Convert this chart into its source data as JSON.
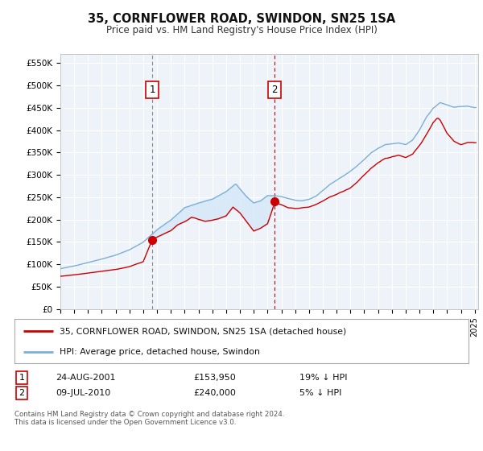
{
  "title": "35, CORNFLOWER ROAD, SWINDON, SN25 1SA",
  "subtitle": "Price paid vs. HM Land Registry's House Price Index (HPI)",
  "ylim": [
    0,
    570000
  ],
  "xlim_start": 1995.0,
  "xlim_end": 2025.25,
  "hpi_color": "#7bafd4",
  "price_color": "#cc0000",
  "shade_color": "#d6e8f7",
  "background_color": "#eef3fa",
  "grid_color": "#ffffff",
  "marker1_x": 2001.647,
  "marker1_y": 153950,
  "marker2_x": 2010.525,
  "marker2_y": 240000,
  "marker1_label": "1",
  "marker2_label": "2",
  "legend_line1": "35, CORNFLOWER ROAD, SWINDON, SN25 1SA (detached house)",
  "legend_line2": "HPI: Average price, detached house, Swindon",
  "table_row1_num": "1",
  "table_row1_date": "24-AUG-2001",
  "table_row1_price": "£153,950",
  "table_row1_hpi": "19% ↓ HPI",
  "table_row2_num": "2",
  "table_row2_date": "09-JUL-2010",
  "table_row2_price": "£240,000",
  "table_row2_hpi": "5% ↓ HPI",
  "footer": "Contains HM Land Registry data © Crown copyright and database right 2024.\nThis data is licensed under the Open Government Licence v3.0."
}
